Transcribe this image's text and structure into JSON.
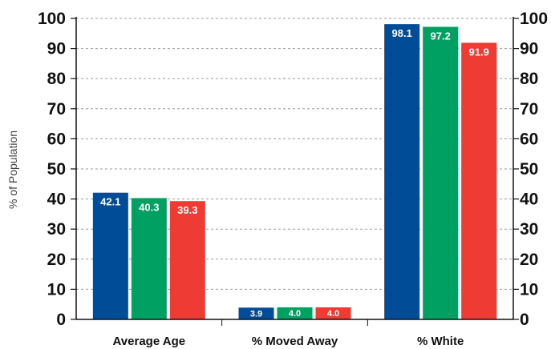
{
  "chart_data": {
    "type": "bar",
    "categories": [
      "Average Age",
      "% Moved Away",
      "% White"
    ],
    "series": [
      {
        "values": [
          42.1,
          3.9,
          98.1
        ],
        "labels": [
          "42.1",
          "3.9",
          "98.1"
        ],
        "color": "#004c97"
      },
      {
        "values": [
          40.3,
          4.0,
          97.2
        ],
        "labels": [
          "40.3",
          "4.0",
          "97.2"
        ],
        "color": "#00a062"
      },
      {
        "values": [
          39.3,
          4.0,
          91.9
        ],
        "labels": [
          "39.3",
          "4.0",
          "91.9"
        ],
        "color": "#ee3b33"
      }
    ],
    "ylabel": "% of Population",
    "ylim": [
      0,
      100
    ],
    "yticks_left": [
      "0",
      "10",
      "20",
      "30",
      "40",
      "50",
      "60",
      "70",
      "80",
      "90",
      "100"
    ],
    "yticks_right": [
      "0",
      "10",
      "20",
      "30",
      "40",
      "50",
      "60",
      "70",
      "80",
      "90",
      "100"
    ],
    "grid": true,
    "grid_style": "dashed",
    "legend": "none"
  }
}
